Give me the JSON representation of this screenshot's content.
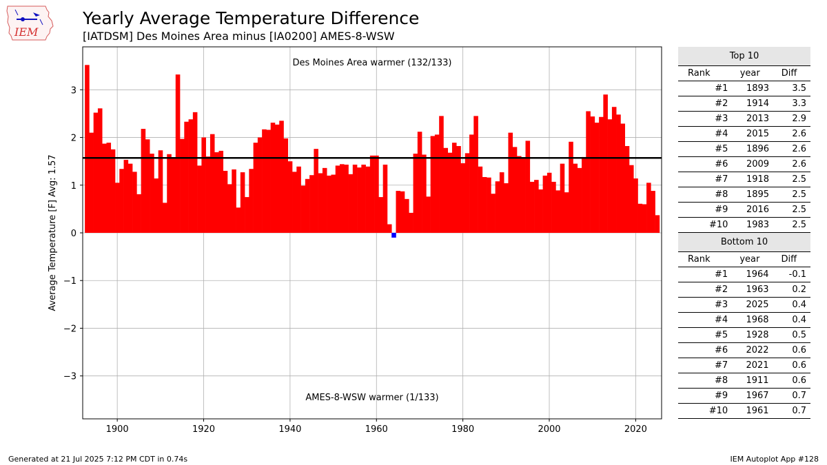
{
  "header": {
    "title": "Yearly Average Temperature Difference",
    "subtitle": "[IATDSM] Des Moines Area minus [IA0200] AMES-8-WSW",
    "logo_text": "IEM"
  },
  "chart_data": {
    "type": "bar",
    "ylabel": "Average Temperature [F] Avg: 1.57",
    "xlabel": "",
    "average": 1.57,
    "xlim": [
      1892,
      2026
    ],
    "ylim": [
      -3.9,
      3.9
    ],
    "grid": true,
    "x_ticks": [
      1900,
      1920,
      1940,
      1960,
      1980,
      2000,
      2020
    ],
    "y_ticks": [
      -3,
      -2,
      -1,
      0,
      1,
      2,
      3
    ],
    "annotation_top": "Des Moines Area warmer (132/133)",
    "annotation_bottom": "AMES-8-WSW warmer (1/133)",
    "positive_color": "#ff0000",
    "negative_color": "#0000ff",
    "average_line_color": "#000000",
    "years": [
      1893,
      1894,
      1895,
      1896,
      1897,
      1898,
      1899,
      1900,
      1901,
      1902,
      1903,
      1904,
      1905,
      1906,
      1907,
      1908,
      1909,
      1910,
      1911,
      1912,
      1913,
      1914,
      1915,
      1916,
      1917,
      1918,
      1919,
      1920,
      1921,
      1922,
      1923,
      1924,
      1925,
      1926,
      1927,
      1928,
      1929,
      1930,
      1931,
      1932,
      1933,
      1934,
      1935,
      1936,
      1937,
      1938,
      1939,
      1940,
      1941,
      1942,
      1943,
      1944,
      1945,
      1946,
      1947,
      1948,
      1949,
      1950,
      1951,
      1952,
      1953,
      1954,
      1955,
      1956,
      1957,
      1958,
      1959,
      1960,
      1961,
      1962,
      1963,
      1964,
      1965,
      1966,
      1967,
      1968,
      1969,
      1970,
      1971,
      1972,
      1973,
      1974,
      1975,
      1976,
      1977,
      1978,
      1979,
      1980,
      1981,
      1982,
      1983,
      1984,
      1985,
      1986,
      1987,
      1988,
      1989,
      1990,
      1991,
      1992,
      1993,
      1994,
      1995,
      1996,
      1997,
      1998,
      1999,
      2000,
      2001,
      2002,
      2003,
      2004,
      2005,
      2006,
      2007,
      2008,
      2009,
      2010,
      2011,
      2012,
      2013,
      2014,
      2015,
      2016,
      2017,
      2018,
      2019,
      2020,
      2021,
      2022,
      2023,
      2024,
      2025
    ],
    "values": [
      3.52,
      2.1,
      2.52,
      2.61,
      1.87,
      1.89,
      1.75,
      1.05,
      1.34,
      1.53,
      1.45,
      1.28,
      0.81,
      2.18,
      1.96,
      1.66,
      1.14,
      1.73,
      0.63,
      1.65,
      1.56,
      3.32,
      1.97,
      2.33,
      2.38,
      2.53,
      1.41,
      2.0,
      1.6,
      2.07,
      1.69,
      1.72,
      1.3,
      1.02,
      1.33,
      0.53,
      1.27,
      0.75,
      1.34,
      1.89,
      2.0,
      2.17,
      2.16,
      2.31,
      2.27,
      2.35,
      1.98,
      1.5,
      1.28,
      1.39,
      0.99,
      1.13,
      1.21,
      1.76,
      1.25,
      1.36,
      1.2,
      1.22,
      1.41,
      1.44,
      1.43,
      1.23,
      1.43,
      1.37,
      1.43,
      1.39,
      1.62,
      1.62,
      0.75,
      1.43,
      0.18,
      -0.1,
      0.88,
      0.87,
      0.71,
      0.42,
      1.66,
      2.12,
      1.64,
      0.76,
      2.03,
      2.06,
      2.45,
      1.78,
      1.68,
      1.89,
      1.82,
      1.46,
      1.67,
      2.06,
      2.45,
      1.39,
      1.17,
      1.16,
      0.82,
      1.08,
      1.27,
      1.04,
      2.1,
      1.8,
      1.61,
      1.57,
      1.93,
      1.07,
      1.11,
      0.91,
      1.2,
      1.26,
      1.07,
      0.89,
      1.45,
      0.85,
      1.91,
      1.45,
      1.36,
      1.59,
      2.55,
      2.44,
      2.31,
      2.43,
      2.9,
      2.38,
      2.64,
      2.48,
      2.29,
      1.82,
      1.42,
      1.14,
      0.61,
      0.6,
      1.05,
      0.88,
      0.37
    ]
  },
  "top10": {
    "title": "Top 10",
    "columns": [
      "Rank",
      "year",
      "Diff"
    ],
    "rows": [
      [
        "#1",
        "1893",
        "3.5"
      ],
      [
        "#2",
        "1914",
        "3.3"
      ],
      [
        "#3",
        "2013",
        "2.9"
      ],
      [
        "#4",
        "2015",
        "2.6"
      ],
      [
        "#5",
        "1896",
        "2.6"
      ],
      [
        "#6",
        "2009",
        "2.6"
      ],
      [
        "#7",
        "1918",
        "2.5"
      ],
      [
        "#8",
        "1895",
        "2.5"
      ],
      [
        "#9",
        "2016",
        "2.5"
      ],
      [
        "#10",
        "1983",
        "2.5"
      ]
    ]
  },
  "bottom10": {
    "title": "Bottom 10",
    "columns": [
      "Rank",
      "year",
      "Diff"
    ],
    "rows": [
      [
        "#1",
        "1964",
        "-0.1"
      ],
      [
        "#2",
        "1963",
        "0.2"
      ],
      [
        "#3",
        "2025",
        "0.4"
      ],
      [
        "#4",
        "1968",
        "0.4"
      ],
      [
        "#5",
        "1928",
        "0.5"
      ],
      [
        "#6",
        "2022",
        "0.6"
      ],
      [
        "#7",
        "2021",
        "0.6"
      ],
      [
        "#8",
        "1911",
        "0.6"
      ],
      [
        "#9",
        "1967",
        "0.7"
      ],
      [
        "#10",
        "1961",
        "0.7"
      ]
    ]
  },
  "footer": {
    "generated": "Generated at 21 Jul 2025 7:12 PM CDT in 0.74s",
    "app": "IEM Autoplot App #128"
  }
}
